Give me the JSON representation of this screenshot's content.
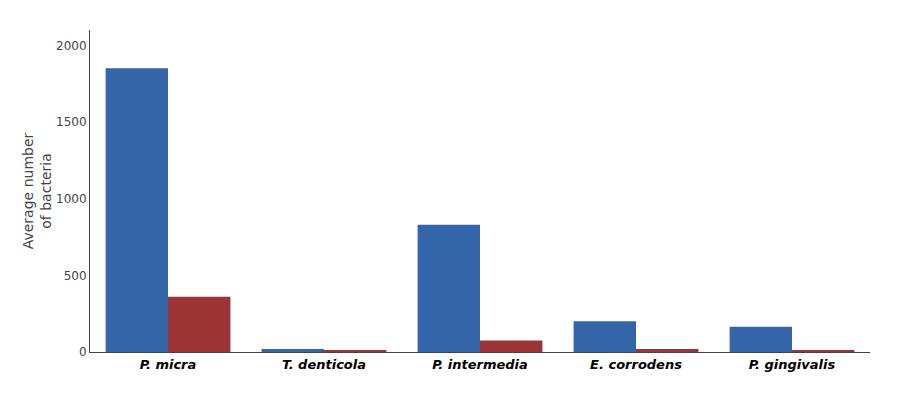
{
  "chart_data": {
    "type": "bar",
    "ylabel": "Average number\nof bacteria",
    "categories": [
      "P. micra",
      "T. denticola",
      "P. intermedia",
      "E. corrodens",
      "P. gingivalis"
    ],
    "series": [
      {
        "color": "#3465a8",
        "values": [
          1850,
          20,
          830,
          200,
          165
        ]
      },
      {
        "color": "#9b3535",
        "values": [
          360,
          8,
          75,
          20,
          10
        ]
      }
    ],
    "ylim": [
      0,
      2100
    ],
    "yticks": [
      0,
      500,
      1000,
      1500,
      2000
    ],
    "grid": false
  }
}
